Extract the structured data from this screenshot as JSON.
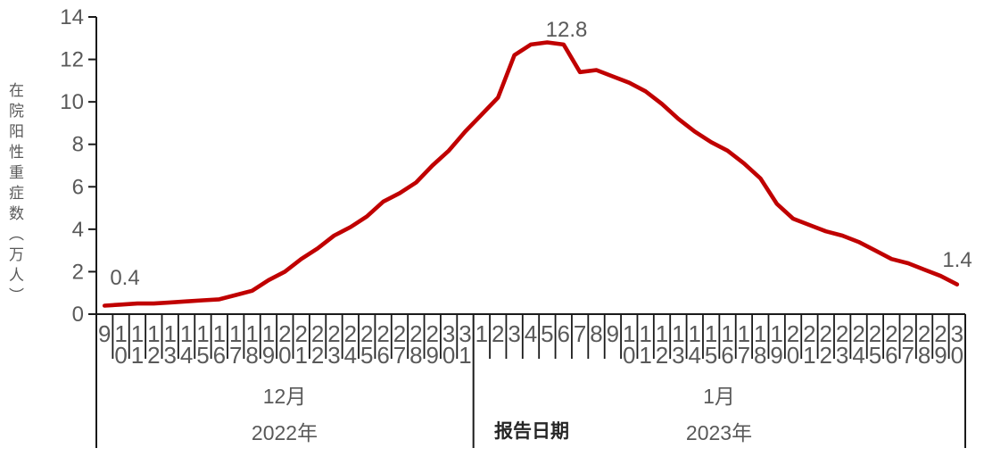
{
  "colors": {
    "line": "#c00000",
    "text": "#595959",
    "axis": "#1a1a1a"
  },
  "y_axis": {
    "title": "在院阳性重症数（万人）",
    "tick_values": [
      0,
      2,
      4,
      6,
      8,
      10,
      12,
      14
    ],
    "min": 0,
    "max": 14
  },
  "x_axis": {
    "title": "报告日期",
    "month_groups": [
      {
        "month": "12月",
        "year": "2022年",
        "days": [
          "9",
          "10",
          "11",
          "12",
          "13",
          "14",
          "15",
          "16",
          "17",
          "18",
          "19",
          "20",
          "21",
          "22",
          "23",
          "24",
          "25",
          "26",
          "27",
          "28",
          "29",
          "30",
          "31"
        ]
      },
      {
        "month": "1月",
        "year": "2023年",
        "days": [
          "1",
          "2",
          "3",
          "4",
          "5",
          "6",
          "7",
          "8",
          "9",
          "10",
          "11",
          "12",
          "13",
          "14",
          "15",
          "16",
          "17",
          "18",
          "19",
          "20",
          "21",
          "22",
          "23",
          "24",
          "25",
          "26",
          "27",
          "28",
          "29",
          "30"
        ]
      }
    ]
  },
  "annotations": {
    "start": "0.4",
    "peak": "12.8",
    "end": "1.4"
  },
  "chart_data": {
    "type": "line",
    "title": "",
    "xlabel": "报告日期",
    "ylabel": "在院阳性重症数（万人）",
    "ylim": [
      0,
      14
    ],
    "grid": false,
    "legend": "none",
    "categories": [
      "12-9",
      "12-10",
      "12-11",
      "12-12",
      "12-13",
      "12-14",
      "12-15",
      "12-16",
      "12-17",
      "12-18",
      "12-19",
      "12-20",
      "12-21",
      "12-22",
      "12-23",
      "12-24",
      "12-25",
      "12-26",
      "12-27",
      "12-28",
      "12-29",
      "12-30",
      "12-31",
      "1-1",
      "1-2",
      "1-3",
      "1-4",
      "1-5",
      "1-6",
      "1-7",
      "1-8",
      "1-9",
      "1-10",
      "1-11",
      "1-12",
      "1-13",
      "1-14",
      "1-15",
      "1-16",
      "1-17",
      "1-18",
      "1-19",
      "1-20",
      "1-21",
      "1-22",
      "1-23",
      "1-24",
      "1-25",
      "1-26",
      "1-27",
      "1-28",
      "1-29",
      "1-30"
    ],
    "series": [
      {
        "name": "在院阳性重症数",
        "values": [
          0.4,
          0.45,
          0.5,
          0.5,
          0.55,
          0.6,
          0.65,
          0.7,
          0.9,
          1.1,
          1.6,
          2.0,
          2.6,
          3.1,
          3.7,
          4.1,
          4.6,
          5.3,
          5.7,
          6.2,
          7.0,
          7.7,
          8.6,
          9.4,
          10.2,
          12.2,
          12.7,
          12.8,
          12.7,
          11.4,
          11.5,
          11.2,
          10.9,
          10.5,
          9.9,
          9.2,
          8.6,
          8.1,
          7.7,
          7.1,
          6.4,
          5.2,
          4.5,
          4.2,
          3.9,
          3.7,
          3.4,
          3.0,
          2.6,
          2.4,
          2.1,
          1.8,
          1.4
        ]
      }
    ],
    "annotated_points": [
      {
        "category": "12-9",
        "value": 0.4,
        "label": "0.4"
      },
      {
        "category": "1-5",
        "value": 12.8,
        "label": "12.8"
      },
      {
        "category": "1-30",
        "value": 1.4,
        "label": "1.4"
      }
    ]
  }
}
